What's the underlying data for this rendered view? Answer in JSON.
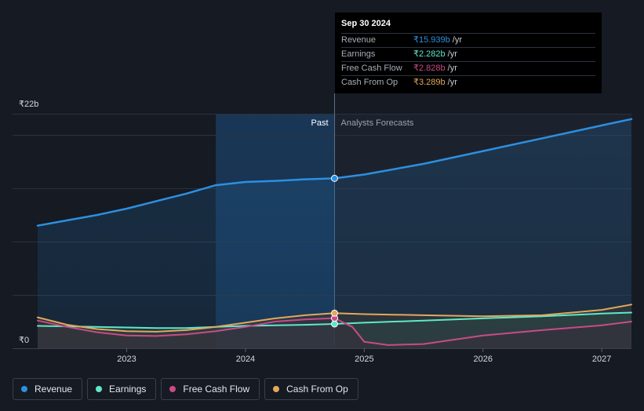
{
  "colors": {
    "revenue": "#2d8fe0",
    "earnings": "#5ee8c9",
    "free_cash_flow": "#c94b86",
    "cash_from_op": "#e3a85c",
    "background": "#151a23"
  },
  "tooltip": {
    "date": "Sep 30 2024",
    "rows": [
      {
        "label": "Revenue",
        "value": "₹15.939b",
        "unit": "/yr"
      },
      {
        "label": "Earnings",
        "value": "₹2.282b",
        "unit": "/yr"
      },
      {
        "label": "Free Cash Flow",
        "value": "₹2.828b",
        "unit": "/yr"
      },
      {
        "label": "Cash From Op",
        "value": "₹3.289b",
        "unit": "/yr"
      }
    ]
  },
  "legend": [
    {
      "name": "Revenue"
    },
    {
      "name": "Earnings"
    },
    {
      "name": "Free Cash Flow"
    },
    {
      "name": "Cash From Op"
    }
  ],
  "chart_data": {
    "type": "line",
    "title": "",
    "y_max_label": "₹22b",
    "y_min_label": "₹0",
    "ylim": [
      0,
      22
    ],
    "xlim": [
      2022.25,
      2027.25
    ],
    "xticks": [
      2023,
      2024,
      2025,
      2026,
      2027
    ],
    "xtick_labels": [
      "2023",
      "2024",
      "2025",
      "2026",
      "2027"
    ],
    "divider_x": 2024.75,
    "past_label": "Past",
    "forecast_label": "Analysts Forecasts",
    "highlight_band": [
      2023.75,
      2024.75
    ],
    "series": [
      {
        "name": "Revenue",
        "key": "revenue",
        "x": [
          2022.25,
          2022.5,
          2022.75,
          2023.0,
          2023.25,
          2023.5,
          2023.75,
          2024.0,
          2024.25,
          2024.5,
          2024.75,
          2025.0,
          2025.5,
          2026.0,
          2026.5,
          2027.0,
          2027.25
        ],
        "y": [
          11.5,
          12.0,
          12.5,
          13.1,
          13.8,
          14.5,
          15.3,
          15.6,
          15.7,
          15.85,
          15.939,
          16.3,
          17.3,
          18.5,
          19.7,
          20.9,
          21.5
        ]
      },
      {
        "name": "Earnings",
        "key": "earnings",
        "x": [
          2022.25,
          2022.5,
          2022.75,
          2023.0,
          2023.25,
          2023.5,
          2023.75,
          2024.0,
          2024.25,
          2024.5,
          2024.75,
          2025.0,
          2025.5,
          2026.0,
          2026.5,
          2027.0,
          2027.25
        ],
        "y": [
          2.1,
          2.05,
          2.0,
          1.95,
          1.9,
          1.9,
          2.0,
          2.1,
          2.15,
          2.2,
          2.282,
          2.4,
          2.6,
          2.8,
          3.0,
          3.25,
          3.35
        ]
      },
      {
        "name": "Free Cash Flow",
        "key": "free_cash_flow",
        "x": [
          2022.25,
          2022.5,
          2022.75,
          2023.0,
          2023.25,
          2023.5,
          2023.75,
          2024.0,
          2024.25,
          2024.5,
          2024.75,
          2024.9,
          2025.0,
          2025.2,
          2025.5,
          2026.0,
          2026.5,
          2027.0,
          2027.25
        ],
        "y": [
          2.6,
          2.0,
          1.5,
          1.2,
          1.15,
          1.3,
          1.6,
          2.0,
          2.5,
          2.7,
          2.828,
          2.0,
          0.6,
          0.3,
          0.4,
          1.2,
          1.7,
          2.15,
          2.5
        ]
      },
      {
        "name": "Cash From Op",
        "key": "cash_from_op",
        "x": [
          2022.25,
          2022.5,
          2022.75,
          2023.0,
          2023.25,
          2023.5,
          2023.75,
          2024.0,
          2024.25,
          2024.5,
          2024.75,
          2025.0,
          2025.5,
          2026.0,
          2026.5,
          2027.0,
          2027.25
        ],
        "y": [
          2.9,
          2.2,
          1.8,
          1.6,
          1.55,
          1.7,
          2.0,
          2.4,
          2.8,
          3.1,
          3.289,
          3.2,
          3.1,
          3.0,
          3.1,
          3.6,
          4.1
        ]
      }
    ]
  }
}
